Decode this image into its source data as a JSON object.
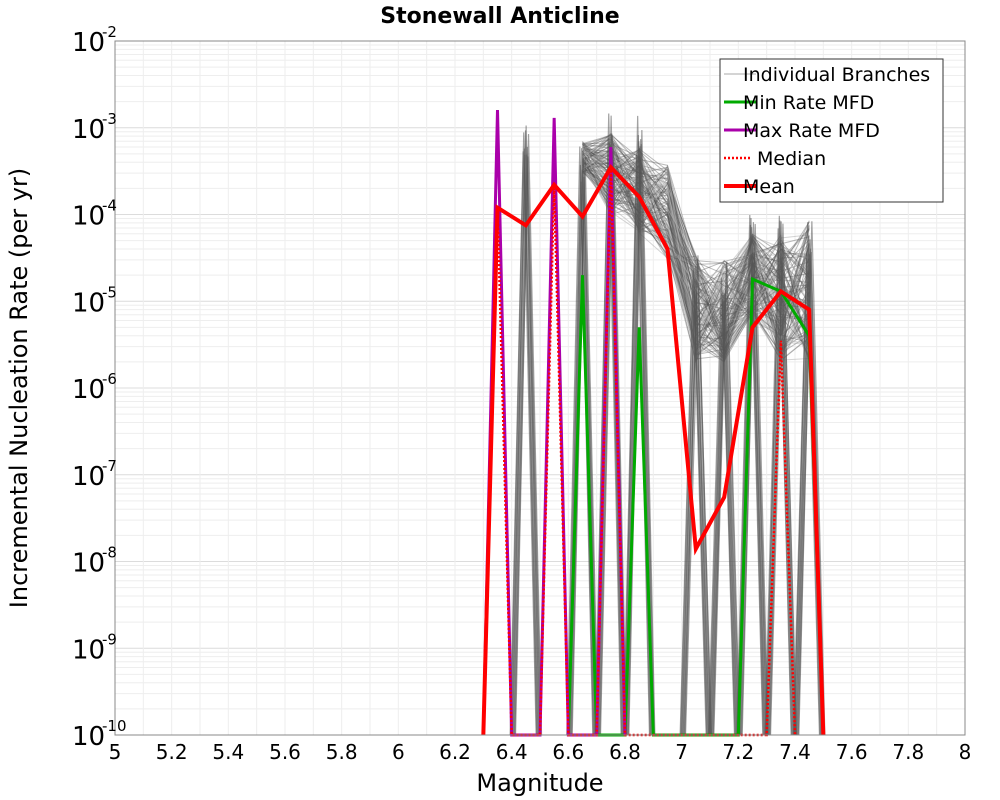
{
  "chart_data": {
    "type": "line",
    "title": "Stonewall Anticline",
    "xlabel": "Magnitude",
    "ylabel": "Incremental Nucleation Rate (per yr)",
    "xlim": [
      5,
      8
    ],
    "ylim": [
      1e-10,
      0.01
    ],
    "y_scale": "log",
    "grid": true,
    "x_ticks": [
      "5",
      "5.2",
      "5.4",
      "5.6",
      "5.8",
      "6",
      "6.2",
      "6.4",
      "6.6",
      "6.8",
      "7",
      "7.2",
      "7.4",
      "7.6",
      "7.8",
      "8"
    ],
    "y_ticks": [
      {
        "base": "10",
        "exp": "-10"
      },
      {
        "base": "10",
        "exp": "-9"
      },
      {
        "base": "10",
        "exp": "-8"
      },
      {
        "base": "10",
        "exp": "-7"
      },
      {
        "base": "10",
        "exp": "-6"
      },
      {
        "base": "10",
        "exp": "-5"
      },
      {
        "base": "10",
        "exp": "-4"
      },
      {
        "base": "10",
        "exp": "-3"
      },
      {
        "base": "10",
        "exp": "-2"
      }
    ],
    "legend_position": "top-right",
    "legend": [
      {
        "label": "Individual Branches",
        "color": "#aaaaaa",
        "style": "solid-thin"
      },
      {
        "label": "Min Rate MFD",
        "color": "#00aa00",
        "style": "solid"
      },
      {
        "label": "Max Rate MFD",
        "color": "#aa00aa",
        "style": "solid"
      },
      {
        "label": "Median",
        "color": "#ff0000",
        "style": "dotted"
      },
      {
        "label": "Mean",
        "color": "#ff0000",
        "style": "solid-thick"
      }
    ],
    "series": [
      {
        "name": "Mean",
        "color": "#ff0000",
        "x": [
          6.3,
          6.35,
          6.45,
          6.55,
          6.65,
          6.75,
          6.85,
          6.95,
          7.05,
          7.15,
          7.25,
          7.35,
          7.45,
          7.5
        ],
        "y": [
          1e-10,
          0.00012,
          7.5e-05,
          0.00022,
          9.5e-05,
          0.00035,
          0.00016,
          4e-05,
          1.4e-08,
          5.5e-08,
          5e-06,
          1.3e-05,
          8e-06,
          1e-10
        ]
      },
      {
        "name": "Median",
        "color": "#ff0000",
        "x": [
          6.3,
          6.35,
          6.4,
          6.5,
          6.55,
          6.6,
          6.7,
          6.75,
          6.8,
          7.3,
          7.35,
          7.4
        ],
        "y": [
          1e-10,
          0.00012,
          1e-10,
          1e-10,
          0.00022,
          1e-10,
          1e-10,
          0.00035,
          1e-10,
          1e-10,
          3.5e-06,
          1e-10
        ]
      },
      {
        "name": "Max Rate MFD",
        "color": "#aa00aa",
        "x": [
          6.3,
          6.35,
          6.4,
          6.5,
          6.55,
          6.6,
          6.7,
          6.75,
          6.8
        ],
        "y": [
          1e-10,
          0.0016,
          1e-10,
          1e-10,
          0.0013,
          1e-10,
          1e-10,
          0.0006,
          1e-10
        ]
      },
      {
        "name": "Min Rate MFD",
        "color": "#00aa00",
        "x": [
          6.6,
          6.65,
          6.7,
          6.8,
          6.85,
          6.9,
          7.2,
          7.25,
          7.35,
          7.45,
          7.5
        ],
        "y": [
          1e-10,
          2e-05,
          1e-10,
          1e-10,
          5e-06,
          1e-10,
          1e-10,
          1.8e-05,
          1.3e-05,
          4e-06,
          1e-10
        ]
      }
    ],
    "branches": {
      "color": "#555555",
      "light_color": "#b0b0b0",
      "spikes": [
        {
          "x": 6.45,
          "low": 1e-10,
          "high": 0.0013
        },
        {
          "x": 6.65,
          "low": 1e-10,
          "high": 0.0007
        },
        {
          "x": 6.75,
          "low": 1e-10,
          "high": 0.0016
        },
        {
          "x": 6.85,
          "low": 1e-10,
          "high": 0.0014
        },
        {
          "x": 7.05,
          "low": 1e-10,
          "high": 3.5e-05
        },
        {
          "x": 7.15,
          "low": 1e-10,
          "high": 3e-05
        },
        {
          "x": 7.25,
          "low": 1e-10,
          "high": 0.0001
        },
        {
          "x": 7.35,
          "low": 1e-10,
          "high": 0.0001
        },
        {
          "x": 7.45,
          "low": 1e-10,
          "high": 9e-05
        }
      ],
      "band_low": [
        [
          6.65,
          0.0003
        ],
        [
          6.75,
          0.0001
        ],
        [
          6.85,
          6e-05
        ],
        [
          6.95,
          3e-05
        ],
        [
          7.05,
          2e-06
        ],
        [
          7.15,
          2e-06
        ],
        [
          7.25,
          6e-06
        ],
        [
          7.35,
          2e-06
        ],
        [
          7.45,
          2e-06
        ]
      ],
      "band_high": [
        [
          6.65,
          0.0007
        ],
        [
          6.75,
          0.0009
        ],
        [
          6.85,
          0.0006
        ],
        [
          6.95,
          0.0004
        ],
        [
          7.05,
          3.5e-05
        ],
        [
          7.15,
          3e-05
        ],
        [
          7.25,
          6e-05
        ],
        [
          7.35,
          6e-05
        ],
        [
          7.45,
          9e-05
        ]
      ]
    }
  }
}
